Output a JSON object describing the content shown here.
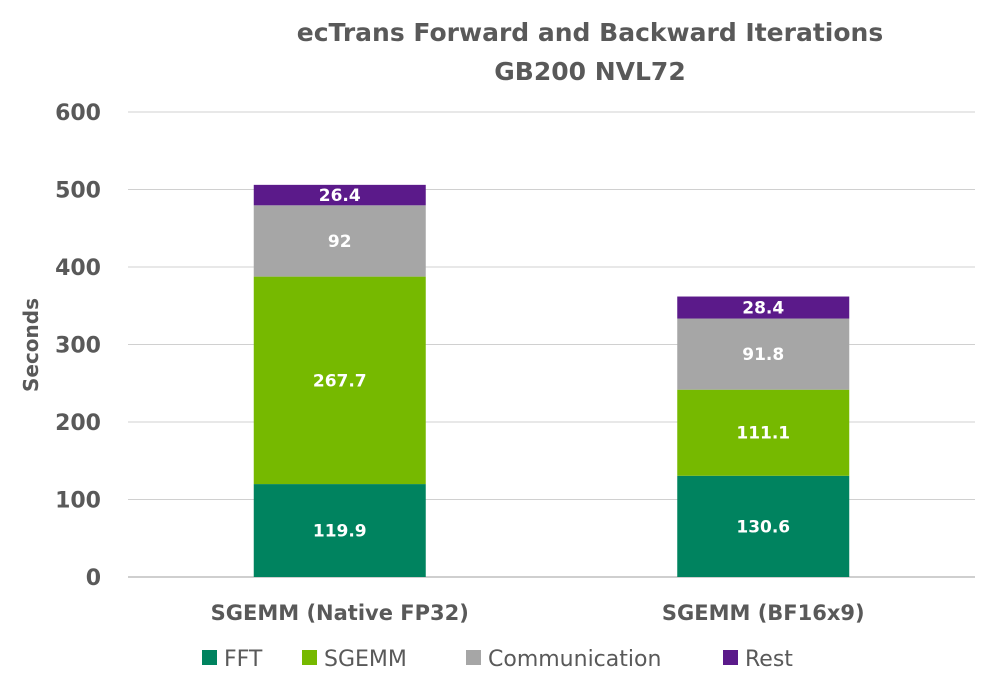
{
  "chart_data": {
    "type": "bar",
    "stacked": true,
    "title": "ecTrans Forward and Backward Iterations",
    "subtitle": "GB200 NVL72",
    "xlabel": "",
    "ylabel": "Seconds",
    "ylim": [
      0,
      600
    ],
    "yticks": [
      "0",
      "100",
      "200",
      "300",
      "400",
      "500",
      "600"
    ],
    "grid": true,
    "legend_position": "bottom",
    "categories": [
      "SGEMM (Native FP32)",
      "SGEMM (BF16x9)"
    ],
    "series": [
      {
        "name": "FFT",
        "color": "#00835f",
        "values": [
          119.9,
          130.6
        ],
        "labels": [
          "119.9",
          "130.6"
        ]
      },
      {
        "name": "SGEMM",
        "color": "#76b900",
        "values": [
          267.7,
          111.1
        ],
        "labels": [
          "267.7",
          "111.1"
        ]
      },
      {
        "name": "Communication",
        "color": "#a6a6a6",
        "values": [
          92,
          91.8
        ],
        "labels": [
          "92",
          "91.8"
        ]
      },
      {
        "name": "Rest",
        "color": "#5b1a8a",
        "values": [
          26.4,
          28.4
        ],
        "labels": [
          "26.4",
          "28.4"
        ]
      }
    ]
  }
}
